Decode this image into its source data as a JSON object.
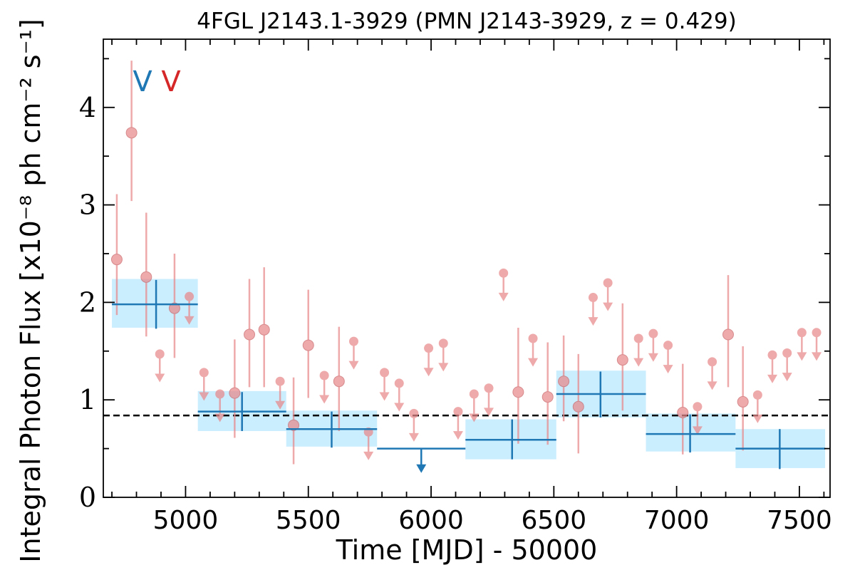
{
  "chart_data": {
    "type": "scatter",
    "title": "4FGL J2143.1-3929 (PMN J2143-3929, z = 0.429)",
    "xlabel": "Time [MJD] - 50000",
    "ylabel": "Integral Photon Flux [x10⁻⁸ ph cm⁻² s⁻¹]",
    "xlim": [
      4665,
      7625
    ],
    "ylim": [
      0,
      4.7
    ],
    "x_ticks": [
      5000,
      5500,
      6000,
      6500,
      7000,
      7500
    ],
    "x_tick_labels": [
      "5000",
      "5500",
      "6000",
      "6500",
      "7000",
      "7500"
    ],
    "y_ticks": [
      0,
      1,
      2,
      3,
      4
    ],
    "y_tick_labels": [
      "0",
      "1",
      "2",
      "3",
      "4"
    ],
    "mean_flux": 0.84,
    "markers": [
      {
        "label": "V",
        "color": "#1f77b4"
      },
      {
        "label": "V",
        "color": "#d62728"
      }
    ],
    "long_bins": [
      {
        "x": 4880,
        "x_lo": 4700,
        "x_hi": 5050,
        "y": 1.98,
        "y_lo": 1.73,
        "y_hi": 2.23,
        "band_lo": 1.74,
        "band_hi": 2.24,
        "upper_limit": false
      },
      {
        "x": 5230,
        "x_lo": 5050,
        "x_hi": 5410,
        "y": 0.88,
        "y_lo": 0.68,
        "y_hi": 1.08,
        "band_lo": 0.68,
        "band_hi": 1.09,
        "upper_limit": false
      },
      {
        "x": 5595,
        "x_lo": 5410,
        "x_hi": 5780,
        "y": 0.7,
        "y_lo": 0.51,
        "y_hi": 0.88,
        "band_lo": 0.52,
        "band_hi": 0.89,
        "upper_limit": false
      },
      {
        "x": 5960,
        "x_lo": 5780,
        "x_hi": 6140,
        "y": 0.5,
        "upper_limit": true
      },
      {
        "x": 6330,
        "x_lo": 6140,
        "x_hi": 6510,
        "y": 0.59,
        "y_lo": 0.39,
        "y_hi": 0.8,
        "band_lo": 0.39,
        "band_hi": 0.8,
        "upper_limit": false
      },
      {
        "x": 6690,
        "x_lo": 6510,
        "x_hi": 6875,
        "y": 1.06,
        "y_lo": 0.82,
        "y_hi": 1.29,
        "band_lo": 0.82,
        "band_hi": 1.3,
        "upper_limit": false
      },
      {
        "x": 7055,
        "x_lo": 6875,
        "x_hi": 7240,
        "y": 0.65,
        "y_lo": 0.46,
        "y_hi": 0.85,
        "band_lo": 0.47,
        "band_hi": 0.86,
        "upper_limit": false
      },
      {
        "x": 7420,
        "x_lo": 7240,
        "x_hi": 7605,
        "y": 0.5,
        "y_lo": 0.29,
        "y_hi": 0.7,
        "band_lo": 0.3,
        "band_hi": 0.7,
        "upper_limit": false
      }
    ],
    "short_bins": [
      {
        "x": 4720,
        "y": 2.44,
        "y_lo": 1.87,
        "y_hi": 3.11,
        "upper_limit": false
      },
      {
        "x": 4780,
        "y": 3.74,
        "y_lo": 3.04,
        "y_hi": 4.48,
        "upper_limit": false
      },
      {
        "x": 4840,
        "y": 2.26,
        "y_lo": 1.65,
        "y_hi": 2.92,
        "upper_limit": false
      },
      {
        "x": 4895,
        "y": 1.47,
        "upper_limit": true
      },
      {
        "x": 4955,
        "y": 1.94,
        "y_lo": 1.43,
        "y_hi": 2.5,
        "upper_limit": false
      },
      {
        "x": 5015,
        "y": 2.06,
        "upper_limit": true
      },
      {
        "x": 5075,
        "y": 1.28,
        "upper_limit": true
      },
      {
        "x": 5140,
        "y": 1.06,
        "upper_limit": true
      },
      {
        "x": 5200,
        "y": 1.07,
        "y_lo": 0.61,
        "y_hi": 1.62,
        "upper_limit": false
      },
      {
        "x": 5260,
        "y": 1.67,
        "y_lo": 1.13,
        "y_hi": 2.24,
        "upper_limit": false
      },
      {
        "x": 5320,
        "y": 1.72,
        "y_lo": 1.13,
        "y_hi": 2.36,
        "upper_limit": false
      },
      {
        "x": 5385,
        "y": 1.19,
        "upper_limit": true
      },
      {
        "x": 5440,
        "y": 0.74,
        "y_lo": 0.34,
        "y_hi": 1.23,
        "upper_limit": false
      },
      {
        "x": 5500,
        "y": 1.56,
        "y_lo": 1.02,
        "y_hi": 2.13,
        "upper_limit": false
      },
      {
        "x": 5565,
        "y": 1.25,
        "upper_limit": true
      },
      {
        "x": 5625,
        "y": 1.19,
        "y_lo": 0.68,
        "y_hi": 1.75,
        "upper_limit": false
      },
      {
        "x": 5685,
        "y": 1.6,
        "upper_limit": true
      },
      {
        "x": 5745,
        "y": 0.67,
        "upper_limit": true
      },
      {
        "x": 5810,
        "y": 1.28,
        "upper_limit": true
      },
      {
        "x": 5870,
        "y": 1.17,
        "upper_limit": true
      },
      {
        "x": 5930,
        "y": 0.86,
        "upper_limit": true
      },
      {
        "x": 5990,
        "y": 1.53,
        "upper_limit": true
      },
      {
        "x": 6050,
        "y": 1.58,
        "upper_limit": true
      },
      {
        "x": 6110,
        "y": 0.88,
        "upper_limit": true
      },
      {
        "x": 6175,
        "y": 1.06,
        "upper_limit": true
      },
      {
        "x": 6235,
        "y": 1.12,
        "upper_limit": true
      },
      {
        "x": 6295,
        "y": 2.3,
        "upper_limit": true
      },
      {
        "x": 6355,
        "y": 1.08,
        "y_lo": 0.55,
        "y_hi": 1.74,
        "upper_limit": false
      },
      {
        "x": 6415,
        "y": 1.63,
        "upper_limit": true
      },
      {
        "x": 6475,
        "y": 1.03,
        "y_lo": 0.54,
        "y_hi": 1.59,
        "upper_limit": false
      },
      {
        "x": 6540,
        "y": 1.19,
        "y_lo": 0.78,
        "y_hi": 1.66,
        "upper_limit": false
      },
      {
        "x": 6600,
        "y": 0.93,
        "y_lo": 0.45,
        "y_hi": 1.47,
        "upper_limit": false
      },
      {
        "x": 6660,
        "y": 2.05,
        "upper_limit": true
      },
      {
        "x": 6720,
        "y": 2.2,
        "upper_limit": true
      },
      {
        "x": 6780,
        "y": 1.41,
        "y_lo": 0.89,
        "y_hi": 1.99,
        "upper_limit": false
      },
      {
        "x": 6845,
        "y": 1.63,
        "upper_limit": true
      },
      {
        "x": 6905,
        "y": 1.68,
        "upper_limit": true
      },
      {
        "x": 6965,
        "y": 1.56,
        "upper_limit": true
      },
      {
        "x": 7025,
        "y": 0.87,
        "y_lo": 0.44,
        "y_hi": 1.37,
        "upper_limit": false
      },
      {
        "x": 7085,
        "y": 0.93,
        "upper_limit": true
      },
      {
        "x": 7145,
        "y": 1.39,
        "upper_limit": true
      },
      {
        "x": 7210,
        "y": 1.67,
        "y_lo": 1.13,
        "y_hi": 2.28,
        "upper_limit": false
      },
      {
        "x": 7270,
        "y": 0.98,
        "y_lo": 0.48,
        "y_hi": 1.55,
        "upper_limit": false
      },
      {
        "x": 7330,
        "y": 1.05,
        "upper_limit": true
      },
      {
        "x": 7390,
        "y": 1.46,
        "upper_limit": true
      },
      {
        "x": 7450,
        "y": 1.48,
        "upper_limit": true
      },
      {
        "x": 7510,
        "y": 1.69,
        "upper_limit": true
      },
      {
        "x": 7570,
        "y": 1.69,
        "upper_limit": true
      }
    ],
    "colors": {
      "long_bin": "#1f77b4",
      "long_band": "#cbeeff",
      "short_bin": "#e8888a",
      "mean_line": "#000000"
    }
  }
}
